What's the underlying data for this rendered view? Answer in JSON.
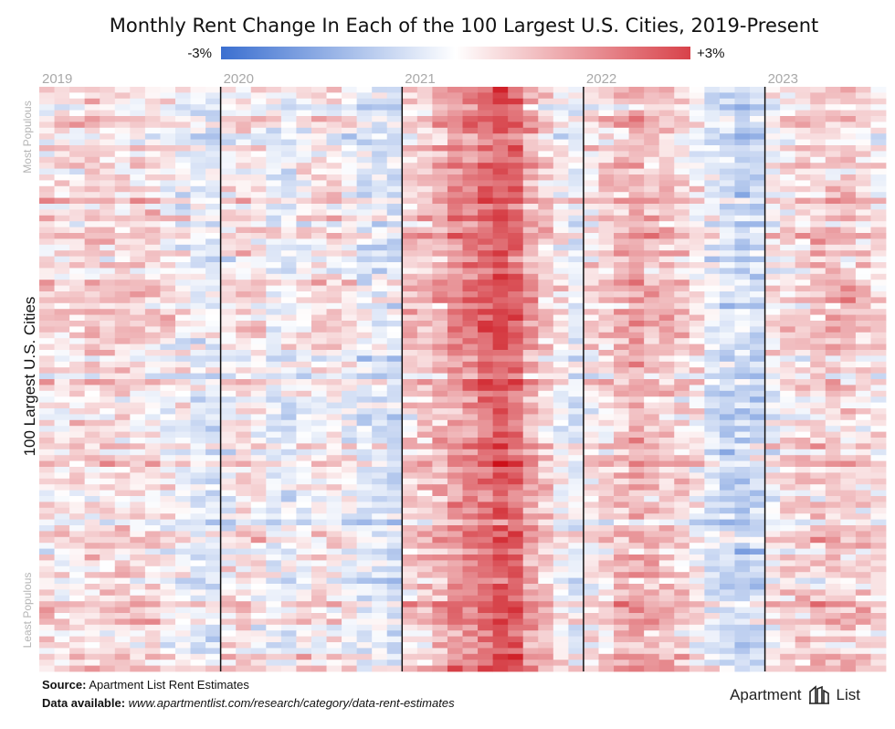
{
  "chart_data": {
    "type": "heatmap",
    "title": "Monthly Rent Change In Each of the 100 Largest U.S. Cities, 2019-Present",
    "legend": {
      "min_label": "-3%",
      "max_label": "+3%",
      "min": -3,
      "max": 3,
      "unit": "%"
    },
    "colors": {
      "negative": "#3b6fd0",
      "neutral": "#ffffff",
      "positive": "#cc1019"
    },
    "ylabel": "100 Largest U.S. Cities",
    "y_top_label": "Most Populous",
    "y_bottom_label": "Least Populous",
    "x_years": [
      "2019",
      "2020",
      "2021",
      "2022",
      "2023"
    ],
    "months_per_year": 12,
    "months_2023": 8,
    "rows": 100,
    "approx_column_means_pct_by_year": {
      "2019": [
        0.3,
        0.3,
        0.3,
        0.4,
        0.4,
        0.4,
        0.3,
        0.3,
        0.1,
        0.0,
        -0.3,
        -0.3
      ],
      "2020": [
        0.1,
        0.3,
        0.2,
        -0.2,
        -0.2,
        0.0,
        0.2,
        0.2,
        0.0,
        -0.3,
        -0.3,
        -0.4
      ],
      "2021": [
        0.5,
        0.6,
        0.8,
        1.2,
        1.4,
        1.7,
        2.0,
        1.8,
        1.0,
        0.5,
        0.1,
        -0.2
      ],
      "2022": [
        0.2,
        0.4,
        0.7,
        0.9,
        0.7,
        0.6,
        0.4,
        0.1,
        -0.3,
        -0.6,
        -0.8,
        -0.6
      ],
      "2023": [
        0.1,
        0.3,
        0.4,
        0.5,
        0.6,
        0.5,
        0.4,
        0.3
      ]
    }
  },
  "footer": {
    "source_label": "Source:",
    "source_text": "Apartment List Rent Estimates",
    "data_label": "Data available:",
    "data_url": "www.apartmentlist.com/research/category/data-rent-estimates"
  },
  "brand": {
    "name_left": "Apartment",
    "name_right": "List",
    "logo_icon": "apartment-list-logo-icon"
  }
}
